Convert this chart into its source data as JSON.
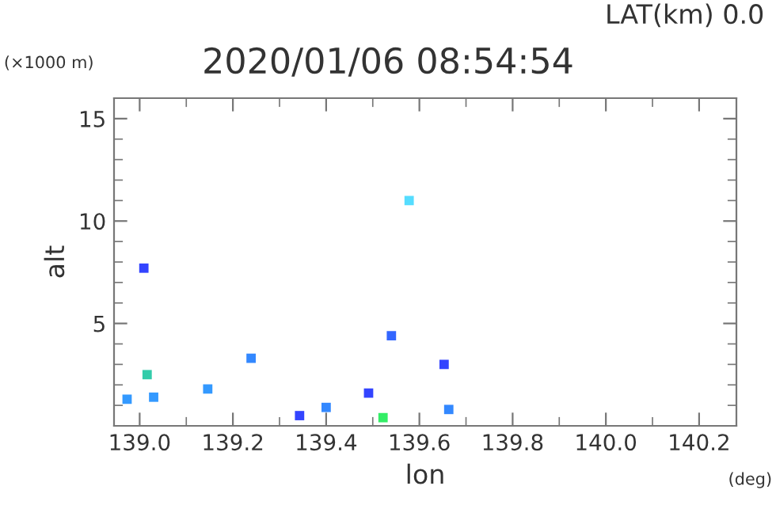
{
  "chart_data": {
    "type": "scatter",
    "title": "2020/01/06 08:54:54",
    "subtitle": "LAT(km) 0.0",
    "xlabel": "lon",
    "ylabel": "alt",
    "annotations": [
      "(×1000 m)",
      "(deg)"
    ],
    "x": [
      138.973,
      139.009,
      139.016,
      139.03,
      139.146,
      139.239,
      139.343,
      139.4,
      139.491,
      139.522,
      139.54,
      139.578,
      139.653,
      139.663
    ],
    "values": [
      1.3,
      7.7,
      2.5,
      1.4,
      1.8,
      3.3,
      0.5,
      0.9,
      1.6,
      0.4,
      4.4,
      11.0,
      3.0,
      0.8
    ],
    "colors": [
      "#3399ff",
      "#3344ff",
      "#33ccaa",
      "#3399ff",
      "#3399ff",
      "#3388ff",
      "#3344ff",
      "#3388ff",
      "#3344ff",
      "#33ee66",
      "#3366ff",
      "#55ddff",
      "#3344ff",
      "#3388ff"
    ],
    "marker": "square",
    "xlim": [
      138.945,
      140.28
    ],
    "ylim": [
      0,
      16
    ],
    "xticks": [
      {
        "value": 139,
        "label": "139.0"
      },
      139.2,
      139.4,
      139.6,
      139.8,
      {
        "value": 140,
        "label": "140.0"
      },
      140.2
    ],
    "yticks": [
      5,
      10,
      15
    ],
    "grid": false,
    "legend": false
  }
}
